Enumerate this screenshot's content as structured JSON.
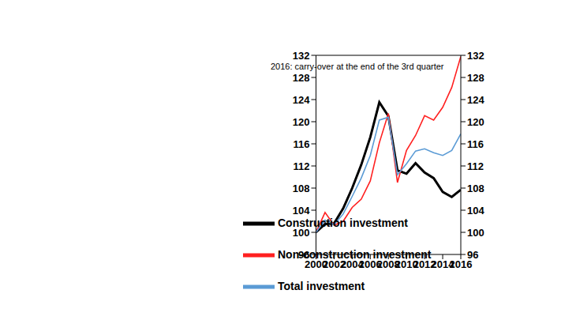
{
  "chart_data": {
    "type": "line",
    "annotation": "2016: carry-over at the end of the 3rd quarter",
    "x": [
      2000,
      2001,
      2002,
      2003,
      2004,
      2005,
      2006,
      2007,
      2008,
      2009,
      2010,
      2011,
      2012,
      2013,
      2014,
      2015,
      2016
    ],
    "series": [
      {
        "name": "Construction investment",
        "color": "#000000",
        "values": [
          100,
          101.5,
          101.6,
          104.3,
          108,
          112.2,
          117.2,
          123.5,
          121,
          111.2,
          110.6,
          112.5,
          110.8,
          109.8,
          107.3,
          106.4,
          107.7
        ]
      },
      {
        "name": "Non-construction investment",
        "color": "#ff2020",
        "values": [
          100,
          103.6,
          101.3,
          102,
          104.5,
          106,
          109.3,
          116.2,
          121.5,
          109,
          114.8,
          117.5,
          121.1,
          120.3,
          122.6,
          126.2,
          131.8
        ]
      },
      {
        "name": "Total investment",
        "color": "#5b9bd5",
        "values": [
          100,
          102.2,
          101.4,
          103.3,
          106.5,
          109.8,
          113.9,
          120.3,
          120.8,
          110.4,
          112.4,
          114.7,
          115.1,
          114.4,
          113.9,
          114.8,
          117.8
        ]
      }
    ],
    "xlim": [
      2000,
      2016
    ],
    "xticks": [
      2000,
      2002,
      2004,
      2006,
      2008,
      2010,
      2012,
      2014,
      2016
    ],
    "ylim": [
      96,
      132
    ],
    "yticks": [
      96,
      100,
      104,
      108,
      112,
      116,
      120,
      124,
      128,
      132
    ],
    "y2lim": [
      96,
      132
    ],
    "y2ticks": [
      96,
      100,
      104,
      108,
      112,
      116,
      120,
      124,
      128,
      132
    ],
    "grid": false,
    "legend": "lower center"
  }
}
